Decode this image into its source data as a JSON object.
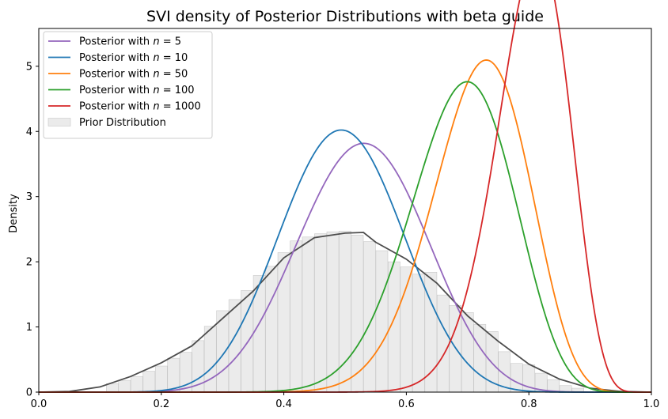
{
  "chart_data": {
    "type": "line",
    "title": "SVI density of Posterior Distributions with beta guide",
    "xlabel": "",
    "ylabel": "Density",
    "xlim": [
      0.0,
      1.0
    ],
    "ylim": [
      0,
      5.58
    ],
    "xticks": [
      "0.0",
      "0.2",
      "0.4",
      "0.6",
      "0.8",
      "1.0"
    ],
    "yticks": [
      "0",
      "1",
      "2",
      "3",
      "4",
      "5"
    ],
    "legend_position": "upper-left",
    "series": [
      {
        "name": "Posterior with n = 5",
        "name_prefix": "Posterior with ",
        "name_var": "n",
        "name_suffix": " = 5",
        "color": "#9467bd",
        "alpha": 12.3,
        "beta": 11.0
      },
      {
        "name": "Posterior with n = 10",
        "name_prefix": "Posterior with ",
        "name_var": "n",
        "name_suffix": " = 10",
        "color": "#1f77b4",
        "alpha": 12.8,
        "beta": 13.1
      },
      {
        "name": "Posterior with n = 50",
        "name_prefix": "Posterior with ",
        "name_var": "n",
        "name_suffix": " = 50",
        "color": "#ff7f0e",
        "alpha": 23.5,
        "beta": 9.3
      },
      {
        "name": "Posterior with n = 100",
        "name_prefix": "Posterior with ",
        "name_var": "n",
        "name_suffix": " = 100",
        "color": "#2ca02c",
        "alpha": 21.0,
        "beta": 9.6
      },
      {
        "name": "Posterior with n = 1000",
        "name_prefix": "Posterior with ",
        "name_var": "n",
        "name_suffix": " = 1000",
        "color": "#d62728",
        "alpha": 35.3,
        "beta": 8.8
      }
    ],
    "prior": {
      "name": "Prior Distribution",
      "hist_color": "#d3d3d3",
      "kde_color": "#4d4d4d",
      "bin_width": 0.0195,
      "bins": [
        [
          0.12,
          0.13
        ],
        [
          0.14,
          0.18
        ],
        [
          0.16,
          0.24
        ],
        [
          0.18,
          0.32
        ],
        [
          0.2,
          0.4
        ],
        [
          0.22,
          0.52
        ],
        [
          0.24,
          0.61
        ],
        [
          0.26,
          0.79
        ],
        [
          0.28,
          1.01
        ],
        [
          0.3,
          1.25
        ],
        [
          0.32,
          1.42
        ],
        [
          0.34,
          1.56
        ],
        [
          0.36,
          1.79
        ],
        [
          0.38,
          1.93
        ],
        [
          0.4,
          2.14
        ],
        [
          0.42,
          2.32
        ],
        [
          0.44,
          2.38
        ],
        [
          0.46,
          2.43
        ],
        [
          0.48,
          2.46
        ],
        [
          0.5,
          2.47
        ],
        [
          0.52,
          2.41
        ],
        [
          0.54,
          2.31
        ],
        [
          0.56,
          2.17
        ],
        [
          0.58,
          2.0
        ],
        [
          0.6,
          1.92
        ],
        [
          0.62,
          1.81
        ],
        [
          0.64,
          1.84
        ],
        [
          0.66,
          1.49
        ],
        [
          0.68,
          1.33
        ],
        [
          0.7,
          1.22
        ],
        [
          0.72,
          1.04
        ],
        [
          0.74,
          0.93
        ],
        [
          0.76,
          0.62
        ],
        [
          0.78,
          0.44
        ],
        [
          0.8,
          0.42
        ],
        [
          0.82,
          0.29
        ],
        [
          0.84,
          0.19
        ],
        [
          0.86,
          0.1
        ],
        [
          0.88,
          0.06
        ]
      ],
      "kde": [
        [
          0.0,
          0.0
        ],
        [
          0.05,
          0.01
        ],
        [
          0.1,
          0.08
        ],
        [
          0.15,
          0.24
        ],
        [
          0.2,
          0.45
        ],
        [
          0.25,
          0.71
        ],
        [
          0.3,
          1.13
        ],
        [
          0.35,
          1.55
        ],
        [
          0.4,
          2.06
        ],
        [
          0.45,
          2.37
        ],
        [
          0.5,
          2.44
        ],
        [
          0.53,
          2.45
        ],
        [
          0.55,
          2.3
        ],
        [
          0.6,
          2.04
        ],
        [
          0.65,
          1.67
        ],
        [
          0.7,
          1.17
        ],
        [
          0.75,
          0.78
        ],
        [
          0.8,
          0.43
        ],
        [
          0.85,
          0.2
        ],
        [
          0.9,
          0.06
        ],
        [
          0.95,
          0.01
        ],
        [
          1.0,
          0.0
        ]
      ]
    }
  }
}
